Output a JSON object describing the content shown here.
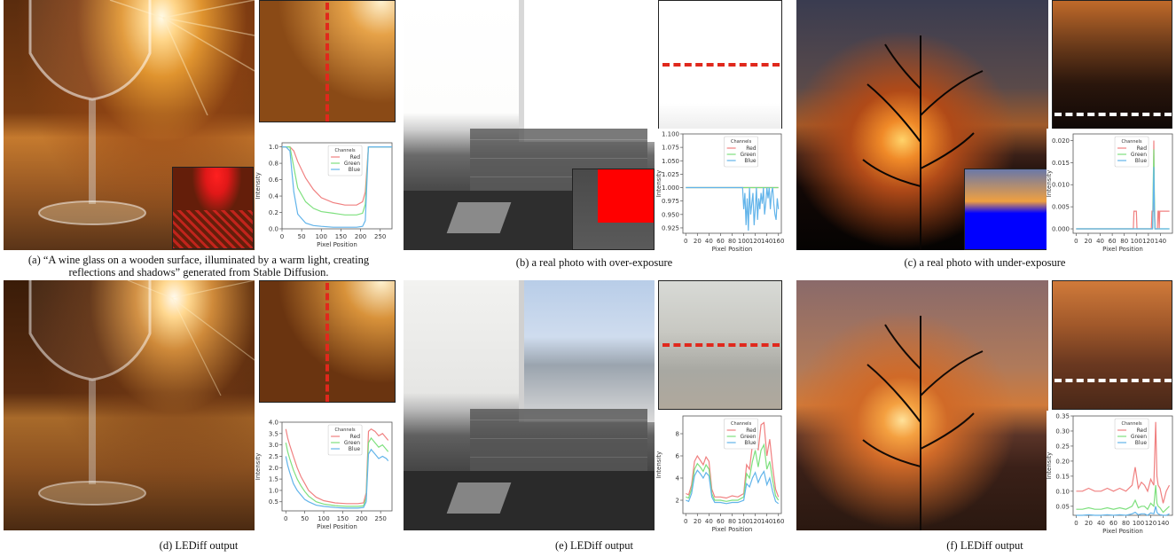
{
  "captions": {
    "a": "(a) “A wine glass on a wooden surface, illuminated by a warm light, creating reflections and shadows” generated from Stable Diffusion.",
    "b": "(b) a real photo with over-exposure",
    "c": "(c) a real photo with under-exposure",
    "d": "(d) LEDiff output",
    "e": "(e) LEDiff output",
    "f": "(f) LEDiff output"
  },
  "legend": {
    "title": "Channels",
    "red": "Red",
    "green": "Green",
    "blue": "Blue"
  },
  "axis": {
    "xlabel": "Pixel Position",
    "ylabel": "Intensity"
  },
  "colors": {
    "red": "#f08080",
    "green": "#7ee07e",
    "blue": "#62b4ea",
    "marker_red": "#e0281c",
    "marker_white": "#ffffff"
  },
  "chart_data": [
    {
      "panel": "a",
      "type": "line",
      "xlim": [
        0,
        280
      ],
      "xticks": [
        0,
        50,
        100,
        150,
        200,
        250
      ],
      "ylim": [
        0,
        1.05
      ],
      "yticks": [
        "0.0",
        "0.2",
        "0.4",
        "0.6",
        "0.8",
        "1.0"
      ],
      "ytick_vals": [
        0,
        0.2,
        0.4,
        0.6,
        0.8,
        1.0
      ],
      "series": [
        {
          "name": "Red",
          "x": [
            0,
            10,
            20,
            30,
            40,
            60,
            80,
            100,
            130,
            160,
            190,
            205,
            212,
            220,
            280
          ],
          "y": [
            1,
            1,
            1,
            0.95,
            0.82,
            0.62,
            0.48,
            0.38,
            0.32,
            0.29,
            0.29,
            0.33,
            0.45,
            1,
            1
          ]
        },
        {
          "name": "Green",
          "x": [
            0,
            10,
            20,
            30,
            40,
            60,
            80,
            100,
            130,
            160,
            190,
            205,
            212,
            220,
            280
          ],
          "y": [
            1,
            1,
            1,
            0.75,
            0.5,
            0.33,
            0.25,
            0.21,
            0.19,
            0.17,
            0.17,
            0.19,
            0.3,
            1,
            1
          ]
        },
        {
          "name": "Blue",
          "x": [
            0,
            10,
            20,
            30,
            40,
            60,
            80,
            100,
            130,
            160,
            190,
            205,
            212,
            220,
            280
          ],
          "y": [
            1,
            1,
            0.95,
            0.45,
            0.18,
            0.07,
            0.04,
            0.03,
            0.02,
            0.02,
            0.02,
            0.03,
            0.1,
            1,
            1
          ]
        }
      ]
    },
    {
      "panel": "b",
      "type": "line",
      "xlim": [
        -5,
        165
      ],
      "xticks": [
        0,
        20,
        40,
        60,
        80,
        100,
        120,
        140,
        160
      ],
      "ylim": [
        0.915,
        1.1
      ],
      "yticks": [
        "0.925",
        "0.950",
        "0.975",
        "1.000",
        "1.025",
        "1.050",
        "1.075",
        "1.100"
      ],
      "ytick_vals": [
        0.925,
        0.95,
        0.975,
        1.0,
        1.025,
        1.05,
        1.075,
        1.1
      ],
      "series": [
        {
          "name": "Red",
          "x": [
            0,
            90,
            100,
            160
          ],
          "y": [
            1,
            1,
            1,
            1
          ]
        },
        {
          "name": "Green",
          "x": [
            0,
            90,
            100,
            160
          ],
          "y": [
            1,
            1,
            1,
            1
          ]
        },
        {
          "name": "Blue",
          "x": [
            0,
            98,
            100,
            102,
            104,
            106,
            108,
            110,
            112,
            114,
            116,
            118,
            120,
            122,
            124,
            126,
            128,
            130,
            132,
            134,
            136,
            138,
            140,
            142,
            144,
            146,
            148,
            150,
            152,
            154,
            156,
            158,
            160
          ],
          "y": [
            1,
            1,
            0.96,
            0.99,
            0.93,
            0.98,
            0.92,
            1,
            0.95,
            0.97,
            0.99,
            0.93,
            0.96,
            1,
            0.94,
            0.98,
            0.96,
            0.99,
            0.97,
            1,
            0.95,
            0.97,
            1,
            0.98,
            1,
            0.96,
            0.99,
            1,
            0.97,
            0.95,
            0.94,
            0.98,
            0.96
          ]
        }
      ]
    },
    {
      "panel": "c",
      "type": "line",
      "xlim": [
        -5,
        160
      ],
      "xticks": [
        0,
        20,
        40,
        60,
        80,
        100,
        120,
        140
      ],
      "ylim": [
        -0.001,
        0.0215
      ],
      "yticks": [
        "0.000",
        "0.005",
        "0.010",
        "0.015",
        "0.020"
      ],
      "ytick_vals": [
        0,
        0.005,
        0.01,
        0.015,
        0.02
      ],
      "series": [
        {
          "name": "Red",
          "x": [
            0,
            95,
            96,
            100,
            101,
            125,
            126,
            128,
            129,
            130,
            131,
            135,
            136,
            137,
            138,
            139,
            155
          ],
          "y": [
            0,
            0,
            0.004,
            0.004,
            0,
            0,
            0.004,
            0.004,
            0.02,
            0.004,
            0,
            0,
            0.004,
            0.004,
            0,
            0.004,
            0.004
          ]
        },
        {
          "name": "Green",
          "x": [
            0,
            127,
            128,
            129,
            130,
            131,
            155
          ],
          "y": [
            0,
            0,
            0.01,
            0.018,
            0.008,
            0,
            0
          ]
        },
        {
          "name": "Blue",
          "x": [
            0,
            127,
            128,
            129,
            130,
            131,
            155
          ],
          "y": [
            0,
            0,
            0.006,
            0.014,
            0.005,
            0,
            0
          ]
        }
      ]
    },
    {
      "panel": "d",
      "type": "line",
      "xlim": [
        -10,
        280
      ],
      "xticks": [
        0,
        50,
        100,
        150,
        200,
        250
      ],
      "ylim": [
        0.1,
        4.0
      ],
      "yticks": [
        "0.5",
        "1.0",
        "1.5",
        "2.0",
        "2.5",
        "3.0",
        "3.5",
        "4.0"
      ],
      "ytick_vals": [
        0.5,
        1,
        1.5,
        2,
        2.5,
        3,
        3.5,
        4
      ],
      "series": [
        {
          "name": "Red",
          "x": [
            0,
            5,
            10,
            20,
            30,
            40,
            50,
            60,
            80,
            100,
            130,
            160,
            190,
            205,
            212,
            218,
            225,
            235,
            245,
            255,
            265,
            270
          ],
          "y": [
            3.7,
            3.3,
            3.0,
            2.5,
            2.0,
            1.6,
            1.3,
            1.0,
            0.7,
            0.55,
            0.45,
            0.42,
            0.42,
            0.45,
            0.9,
            3.6,
            3.7,
            3.6,
            3.4,
            3.5,
            3.3,
            3.2
          ]
        },
        {
          "name": "Green",
          "x": [
            0,
            5,
            10,
            20,
            30,
            40,
            50,
            60,
            80,
            100,
            130,
            160,
            190,
            205,
            212,
            218,
            225,
            235,
            245,
            255,
            265,
            270
          ],
          "y": [
            3.1,
            2.7,
            2.4,
            1.9,
            1.5,
            1.2,
            0.95,
            0.75,
            0.5,
            0.4,
            0.33,
            0.3,
            0.3,
            0.32,
            0.7,
            3.1,
            3.3,
            3.1,
            2.9,
            3.0,
            2.8,
            2.7
          ]
        },
        {
          "name": "Blue",
          "x": [
            0,
            5,
            10,
            20,
            30,
            40,
            50,
            60,
            80,
            100,
            130,
            160,
            190,
            205,
            212,
            218,
            225,
            235,
            245,
            255,
            265,
            270
          ],
          "y": [
            2.5,
            2.1,
            1.8,
            1.3,
            1.0,
            0.8,
            0.6,
            0.5,
            0.35,
            0.3,
            0.25,
            0.22,
            0.22,
            0.25,
            0.5,
            2.6,
            2.8,
            2.6,
            2.4,
            2.5,
            2.4,
            2.3
          ]
        }
      ]
    },
    {
      "panel": "e",
      "type": "line",
      "xlim": [
        -5,
        165
      ],
      "xticks": [
        0,
        20,
        40,
        60,
        80,
        100,
        120,
        140,
        160
      ],
      "ylim": [
        0.8,
        9.6
      ],
      "yticks": [
        "2",
        "4",
        "6",
        "8"
      ],
      "ytick_vals": [
        2,
        4,
        6,
        8
      ],
      "series": [
        {
          "name": "Red",
          "x": [
            0,
            5,
            10,
            15,
            20,
            25,
            30,
            35,
            40,
            45,
            50,
            60,
            70,
            80,
            90,
            100,
            105,
            110,
            115,
            120,
            125,
            130,
            135,
            140,
            145,
            150,
            155,
            160
          ],
          "y": [
            2.6,
            2.5,
            3.4,
            5.5,
            6.0,
            5.6,
            5.2,
            5.9,
            5.5,
            3.0,
            2.3,
            2.3,
            2.2,
            2.4,
            2.3,
            2.6,
            5.2,
            4.8,
            7.0,
            8.0,
            6.5,
            8.8,
            9.0,
            6.0,
            7.5,
            5.0,
            3.0,
            2.3
          ]
        },
        {
          "name": "Green",
          "x": [
            0,
            5,
            10,
            15,
            20,
            25,
            30,
            35,
            40,
            45,
            50,
            60,
            70,
            80,
            90,
            100,
            105,
            110,
            115,
            120,
            125,
            130,
            135,
            140,
            145,
            150,
            155,
            160
          ],
          "y": [
            2.3,
            2.2,
            3.0,
            4.8,
            5.3,
            5.0,
            4.6,
            5.2,
            4.8,
            2.6,
            2.0,
            2.0,
            1.9,
            2.0,
            2.0,
            2.3,
            4.4,
            4.0,
            5.5,
            6.5,
            5.0,
            6.5,
            7.0,
            4.8,
            5.5,
            3.8,
            2.4,
            2.0
          ]
        },
        {
          "name": "Blue",
          "x": [
            0,
            5,
            10,
            15,
            20,
            25,
            30,
            35,
            40,
            45,
            50,
            60,
            70,
            80,
            90,
            100,
            105,
            110,
            115,
            120,
            125,
            130,
            135,
            140,
            145,
            150,
            155,
            160
          ],
          "y": [
            2.0,
            1.9,
            2.6,
            4.2,
            4.7,
            4.4,
            4.0,
            4.5,
            4.2,
            2.3,
            1.8,
            1.8,
            1.7,
            1.8,
            1.8,
            2.0,
            3.5,
            3.2,
            4.0,
            4.5,
            3.6,
            4.2,
            4.6,
            3.4,
            4.0,
            2.8,
            1.9,
            1.7
          ]
        }
      ]
    },
    {
      "panel": "f",
      "type": "line",
      "xlim": [
        -5,
        155
      ],
      "xticks": [
        0,
        20,
        40,
        60,
        80,
        100,
        120,
        140
      ],
      "ylim": [
        0.02,
        0.35
      ],
      "yticks": [
        "0.05",
        "0.10",
        "0.15",
        "0.20",
        "0.25",
        "0.30",
        "0.35"
      ],
      "ytick_vals": [
        0.05,
        0.1,
        0.15,
        0.2,
        0.25,
        0.3,
        0.35
      ],
      "series": [
        {
          "name": "Red",
          "x": [
            0,
            10,
            20,
            30,
            40,
            50,
            60,
            70,
            80,
            90,
            95,
            100,
            105,
            110,
            115,
            120,
            125,
            128,
            130,
            132,
            135,
            140,
            145,
            150
          ],
          "y": [
            0.1,
            0.1,
            0.11,
            0.1,
            0.1,
            0.11,
            0.1,
            0.11,
            0.1,
            0.12,
            0.18,
            0.11,
            0.13,
            0.12,
            0.1,
            0.14,
            0.12,
            0.33,
            0.15,
            0.12,
            0.11,
            0.06,
            0.1,
            0.12
          ]
        },
        {
          "name": "Green",
          "x": [
            0,
            10,
            20,
            30,
            40,
            50,
            60,
            70,
            80,
            90,
            95,
            100,
            105,
            110,
            115,
            120,
            125,
            128,
            130,
            132,
            135,
            140,
            145,
            150
          ],
          "y": [
            0.04,
            0.04,
            0.045,
            0.04,
            0.04,
            0.045,
            0.04,
            0.045,
            0.04,
            0.05,
            0.07,
            0.045,
            0.05,
            0.05,
            0.04,
            0.06,
            0.05,
            0.12,
            0.06,
            0.05,
            0.045,
            0.03,
            0.04,
            0.05
          ]
        },
        {
          "name": "Blue",
          "x": [
            0,
            10,
            20,
            30,
            40,
            50,
            60,
            70,
            80,
            90,
            95,
            100,
            105,
            110,
            115,
            120,
            125,
            128,
            130,
            132,
            135,
            140,
            145,
            150
          ],
          "y": [
            0.02,
            0.02,
            0.022,
            0.02,
            0.02,
            0.022,
            0.02,
            0.022,
            0.02,
            0.025,
            0.03,
            0.022,
            0.025,
            0.025,
            0.02,
            0.028,
            0.025,
            0.05,
            0.03,
            0.025,
            0.022,
            0.02,
            0.02,
            0.025
          ]
        }
      ]
    }
  ]
}
